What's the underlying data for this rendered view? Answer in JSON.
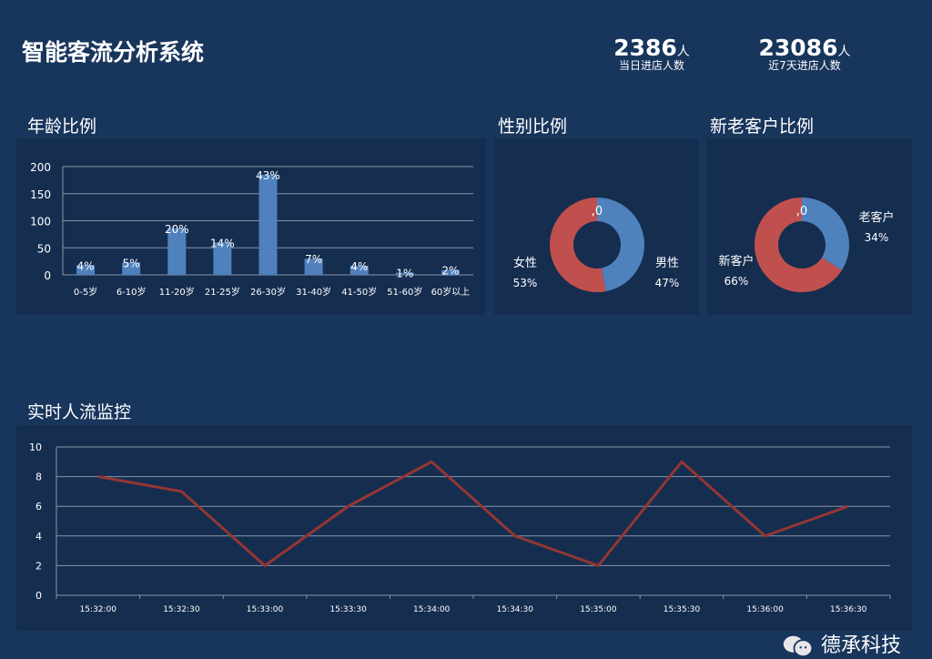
{
  "header": {
    "title": "智能客流分析系统",
    "stats": [
      {
        "value": "2386",
        "unit": "人",
        "label": "当日进店人数"
      },
      {
        "value": "23086",
        "unit": "人",
        "label": "近7天进店人数"
      }
    ]
  },
  "sections": {
    "age": "年龄比例",
    "gender": "性别比例",
    "customer": "新老客户比例",
    "realtime": "实时人流监控"
  },
  "colors": {
    "bar": "#4f81bd",
    "red": "#c0504d",
    "line": "#943634",
    "panel": "#152d4f",
    "bg": "#18355c"
  },
  "watermark": "德承科技",
  "chart_data": [
    {
      "type": "bar",
      "categories": [
        "0-5岁",
        "6-10岁",
        "11-20岁",
        "21-25岁",
        "26-30岁",
        "31-40岁",
        "41-50岁",
        "51-60岁",
        "60岁以上"
      ],
      "values": [
        18,
        23,
        86,
        60,
        185,
        30,
        17,
        4,
        9
      ],
      "data_labels": [
        "4%",
        "5%",
        "20%",
        "14%",
        "43%",
        "7%",
        "4%",
        "1%",
        "2%"
      ],
      "ylim": [
        0,
        200
      ],
      "yticks": [
        "0",
        "50",
        "100",
        "150",
        "200"
      ],
      "grid": true
    },
    {
      "type": "pie",
      "donut": true,
      "slices": [
        {
          "label": "男性",
          "value": 47,
          "pct": "47%"
        },
        {
          "label": "女性",
          "value": 53,
          "pct": "53%"
        }
      ],
      "extra_label": ",0"
    },
    {
      "type": "pie",
      "donut": true,
      "slices": [
        {
          "label": "老客户",
          "value": 34,
          "pct": "34%"
        },
        {
          "label": "新客户",
          "value": 66,
          "pct": "66%"
        }
      ],
      "extra_label": ",0"
    },
    {
      "type": "line",
      "x": [
        "15:32:00",
        "15:32:30",
        "15:33:00",
        "15:33:30",
        "15:34:00",
        "15:34:30",
        "15:35:00",
        "15:35:30",
        "15:36:00",
        "15:36:30"
      ],
      "values": [
        8,
        7,
        2,
        6,
        9,
        4,
        2,
        9,
        4,
        6
      ],
      "ylim": [
        0,
        10
      ],
      "yticks": [
        "0",
        "2",
        "4",
        "6",
        "8",
        "10"
      ],
      "grid": true
    }
  ]
}
